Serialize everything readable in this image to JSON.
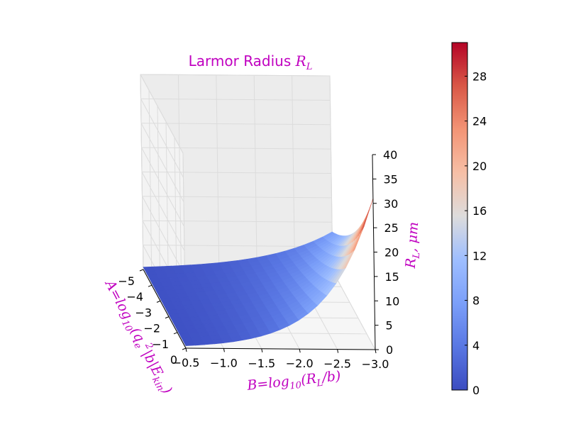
{
  "chart_data": {
    "type": "surface3d",
    "title_text": "Larmor Radius ",
    "title_math": "R",
    "title_math_sub": "L",
    "x_axis": {
      "label_main": "B=log",
      "label_sub": "10",
      "label_rest": "(R",
      "label_rest_sub": "L",
      "label_tail": "/b)",
      "ticks": [
        "−0.5",
        "−1.0",
        "−1.5",
        "−2.0",
        "−2.5",
        "−3.0"
      ],
      "tick_values": [
        -0.5,
        -1.0,
        -1.5,
        -2.0,
        -2.5,
        -3.0
      ],
      "range": [
        -0.5,
        -3.0
      ]
    },
    "y_axis": {
      "label_main": "A=log",
      "label_sub": "10",
      "label_rest": "(q",
      "label_rest_sub": "e",
      "label_rest_sup": "2",
      "label_tail": "|b|E",
      "label_tail_sub": "kin",
      "label_close": ")",
      "ticks": [
        "0",
        "−1",
        "−2",
        "−3",
        "−4",
        "−5"
      ],
      "tick_values": [
        0,
        -1,
        -2,
        -3,
        -4,
        -5
      ],
      "range": [
        0,
        -5
      ]
    },
    "z_axis": {
      "label_main": "R",
      "label_sub": "L",
      "label_tail": ", μm",
      "ticks": [
        "0",
        "5",
        "10",
        "15",
        "20",
        "25",
        "30",
        "35",
        "40"
      ],
      "tick_values": [
        0,
        5,
        10,
        15,
        20,
        25,
        30,
        35,
        40
      ],
      "range": [
        0,
        40
      ]
    },
    "colorbar": {
      "colormap": "coolwarm",
      "ticks": [
        "0",
        "4",
        "8",
        "12",
        "16",
        "20",
        "24",
        "28"
      ],
      "tick_values": [
        0,
        4,
        8,
        12,
        16,
        20,
        24,
        28
      ],
      "range": [
        0,
        31
      ]
    },
    "surface_samples": [
      {
        "a": 0,
        "b": -0.5,
        "z": 0.5
      },
      {
        "a": -5,
        "b": -0.5,
        "z": 0.5
      },
      {
        "a": -5,
        "b": -3.0,
        "z": 8
      },
      {
        "a": 0,
        "b": -3.0,
        "z": 31
      }
    ],
    "grid": true,
    "colors": {
      "label": "#c000c0",
      "low": "#3b4cc0",
      "mid": "#dddddd",
      "high": "#b40426",
      "pane": "#f2f2f2",
      "grid": "#e6e6e6"
    }
  }
}
